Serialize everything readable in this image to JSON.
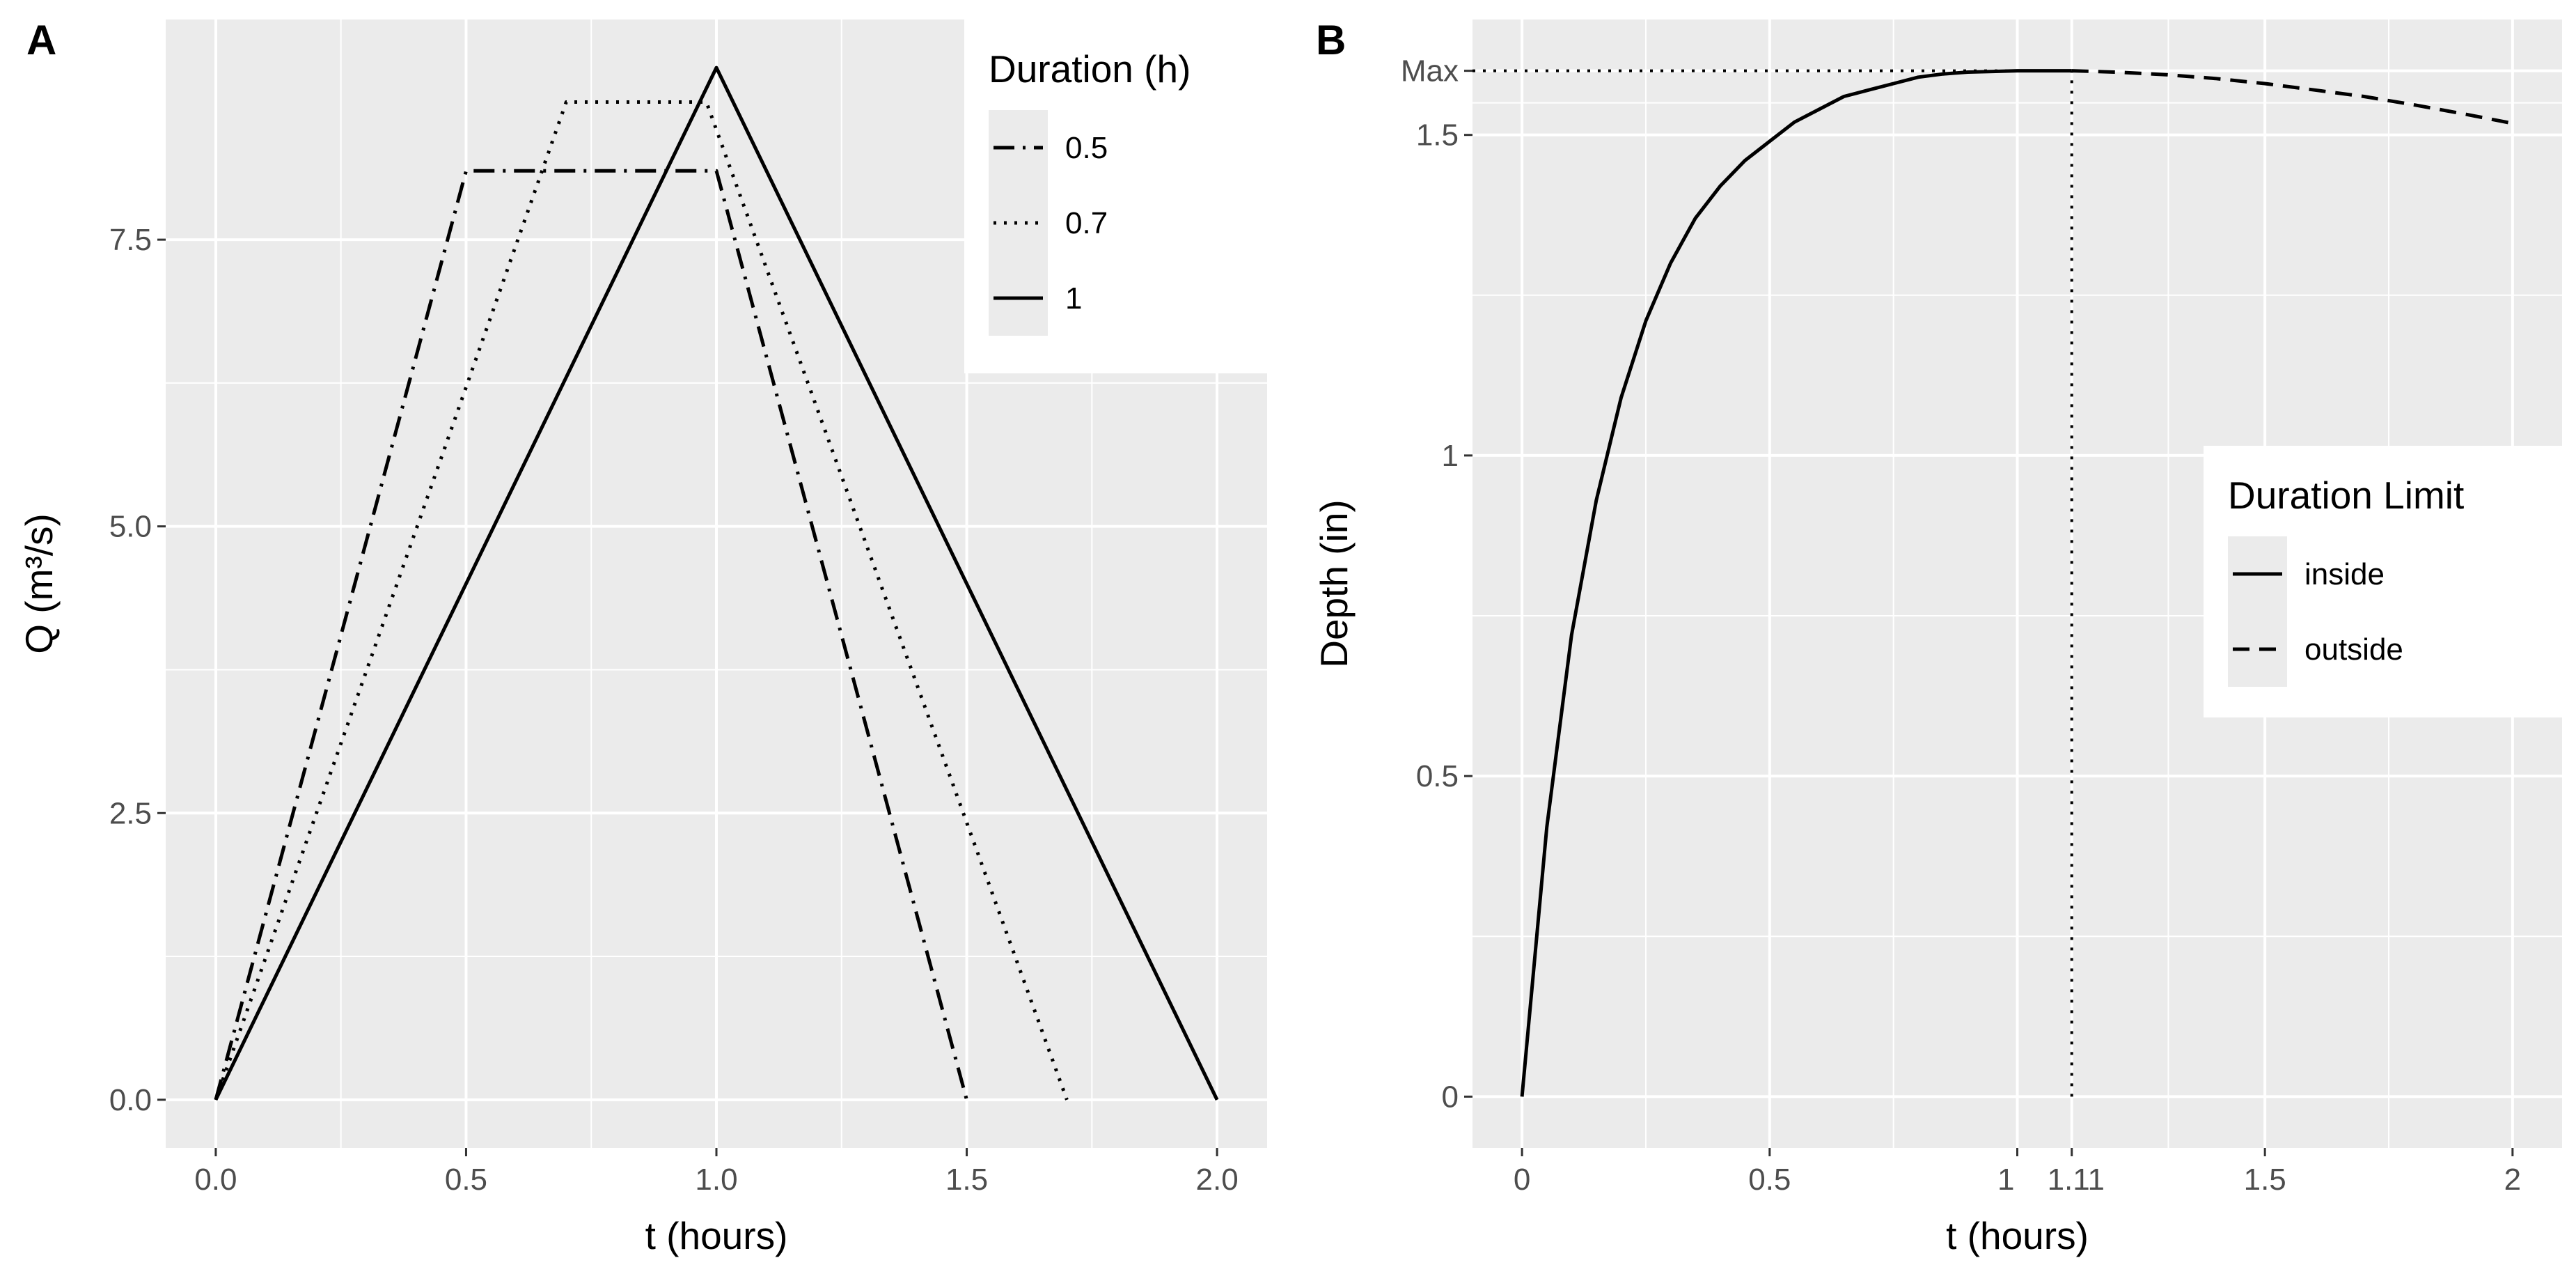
{
  "chart_data": [
    {
      "panel": "A",
      "type": "line",
      "xlabel": "t (hours)",
      "ylabel": "Q (m³/s)",
      "xlim": [
        -0.1,
        2.1
      ],
      "ylim": [
        -0.42,
        9.42
      ],
      "xticks": [
        0.0,
        0.5,
        1.0,
        1.5,
        2.0
      ],
      "xtick_labels": [
        "0.0",
        "0.5",
        "1.0",
        "1.5",
        "2.0"
      ],
      "yticks": [
        0.0,
        2.5,
        5.0,
        7.5
      ],
      "ytick_labels": [
        "0.0",
        "2.5",
        "5.0",
        "7.5"
      ],
      "grid": true,
      "legend": {
        "title": "Duration (h)",
        "position": "top-right",
        "entries": [
          {
            "label": "0.5",
            "linetype": "dashdot"
          },
          {
            "label": "0.7",
            "linetype": "dotted"
          },
          {
            "label": "1",
            "linetype": "solid"
          }
        ]
      },
      "series": [
        {
          "name": "0.5",
          "linetype": "dashdot",
          "x": [
            0,
            0.5,
            1.0,
            1.5
          ],
          "y": [
            0,
            8.1,
            8.1,
            0
          ]
        },
        {
          "name": "0.7",
          "linetype": "dotted",
          "x": [
            0,
            0.7,
            0.98,
            1.7
          ],
          "y": [
            0,
            8.7,
            8.7,
            0
          ]
        },
        {
          "name": "1",
          "linetype": "solid",
          "x": [
            0,
            1.0,
            2.0
          ],
          "y": [
            0,
            9.0,
            0
          ]
        }
      ]
    },
    {
      "panel": "B",
      "type": "line",
      "xlabel": "t (hours)",
      "ylabel": "Depth (in)",
      "xlim": [
        -0.1,
        2.1
      ],
      "ylim": [
        -0.08,
        1.68
      ],
      "xticks": [
        0,
        0.5,
        1,
        1.11,
        1.5,
        2
      ],
      "xtick_labels": [
        "0",
        "0.5",
        "1",
        "1.11",
        "1.5",
        "2"
      ],
      "yticks": [
        0,
        0.5,
        1,
        1.5,
        1.6
      ],
      "ytick_labels": [
        "0",
        "0.5",
        "1",
        "1.5",
        "Max"
      ],
      "grid": true,
      "legend": {
        "title": "Duration Limit",
        "position": "right",
        "entries": [
          {
            "label": "inside",
            "linetype": "solid"
          },
          {
            "label": "outside",
            "linetype": "dashed"
          }
        ]
      },
      "max_value": 1.6,
      "max_time": 1.11,
      "series": [
        {
          "name": "inside",
          "linetype": "solid",
          "x": [
            0,
            0.05,
            0.1,
            0.15,
            0.2,
            0.25,
            0.3,
            0.35,
            0.4,
            0.45,
            0.5,
            0.55,
            0.6,
            0.65,
            0.7,
            0.75,
            0.8,
            0.85,
            0.9,
            0.95,
            1.0,
            1.05,
            1.11
          ],
          "y": [
            0,
            0.42,
            0.72,
            0.93,
            1.09,
            1.21,
            1.3,
            1.37,
            1.42,
            1.46,
            1.49,
            1.52,
            1.54,
            1.56,
            1.57,
            1.58,
            1.59,
            1.595,
            1.598,
            1.599,
            1.6,
            1.6,
            1.6
          ]
        },
        {
          "name": "outside",
          "linetype": "dashed",
          "x": [
            1.11,
            1.2,
            1.3,
            1.4,
            1.5,
            1.6,
            1.7,
            1.8,
            1.9,
            2.0
          ],
          "y": [
            1.6,
            1.598,
            1.594,
            1.588,
            1.58,
            1.57,
            1.56,
            1.547,
            1.533,
            1.518
          ]
        }
      ]
    }
  ]
}
